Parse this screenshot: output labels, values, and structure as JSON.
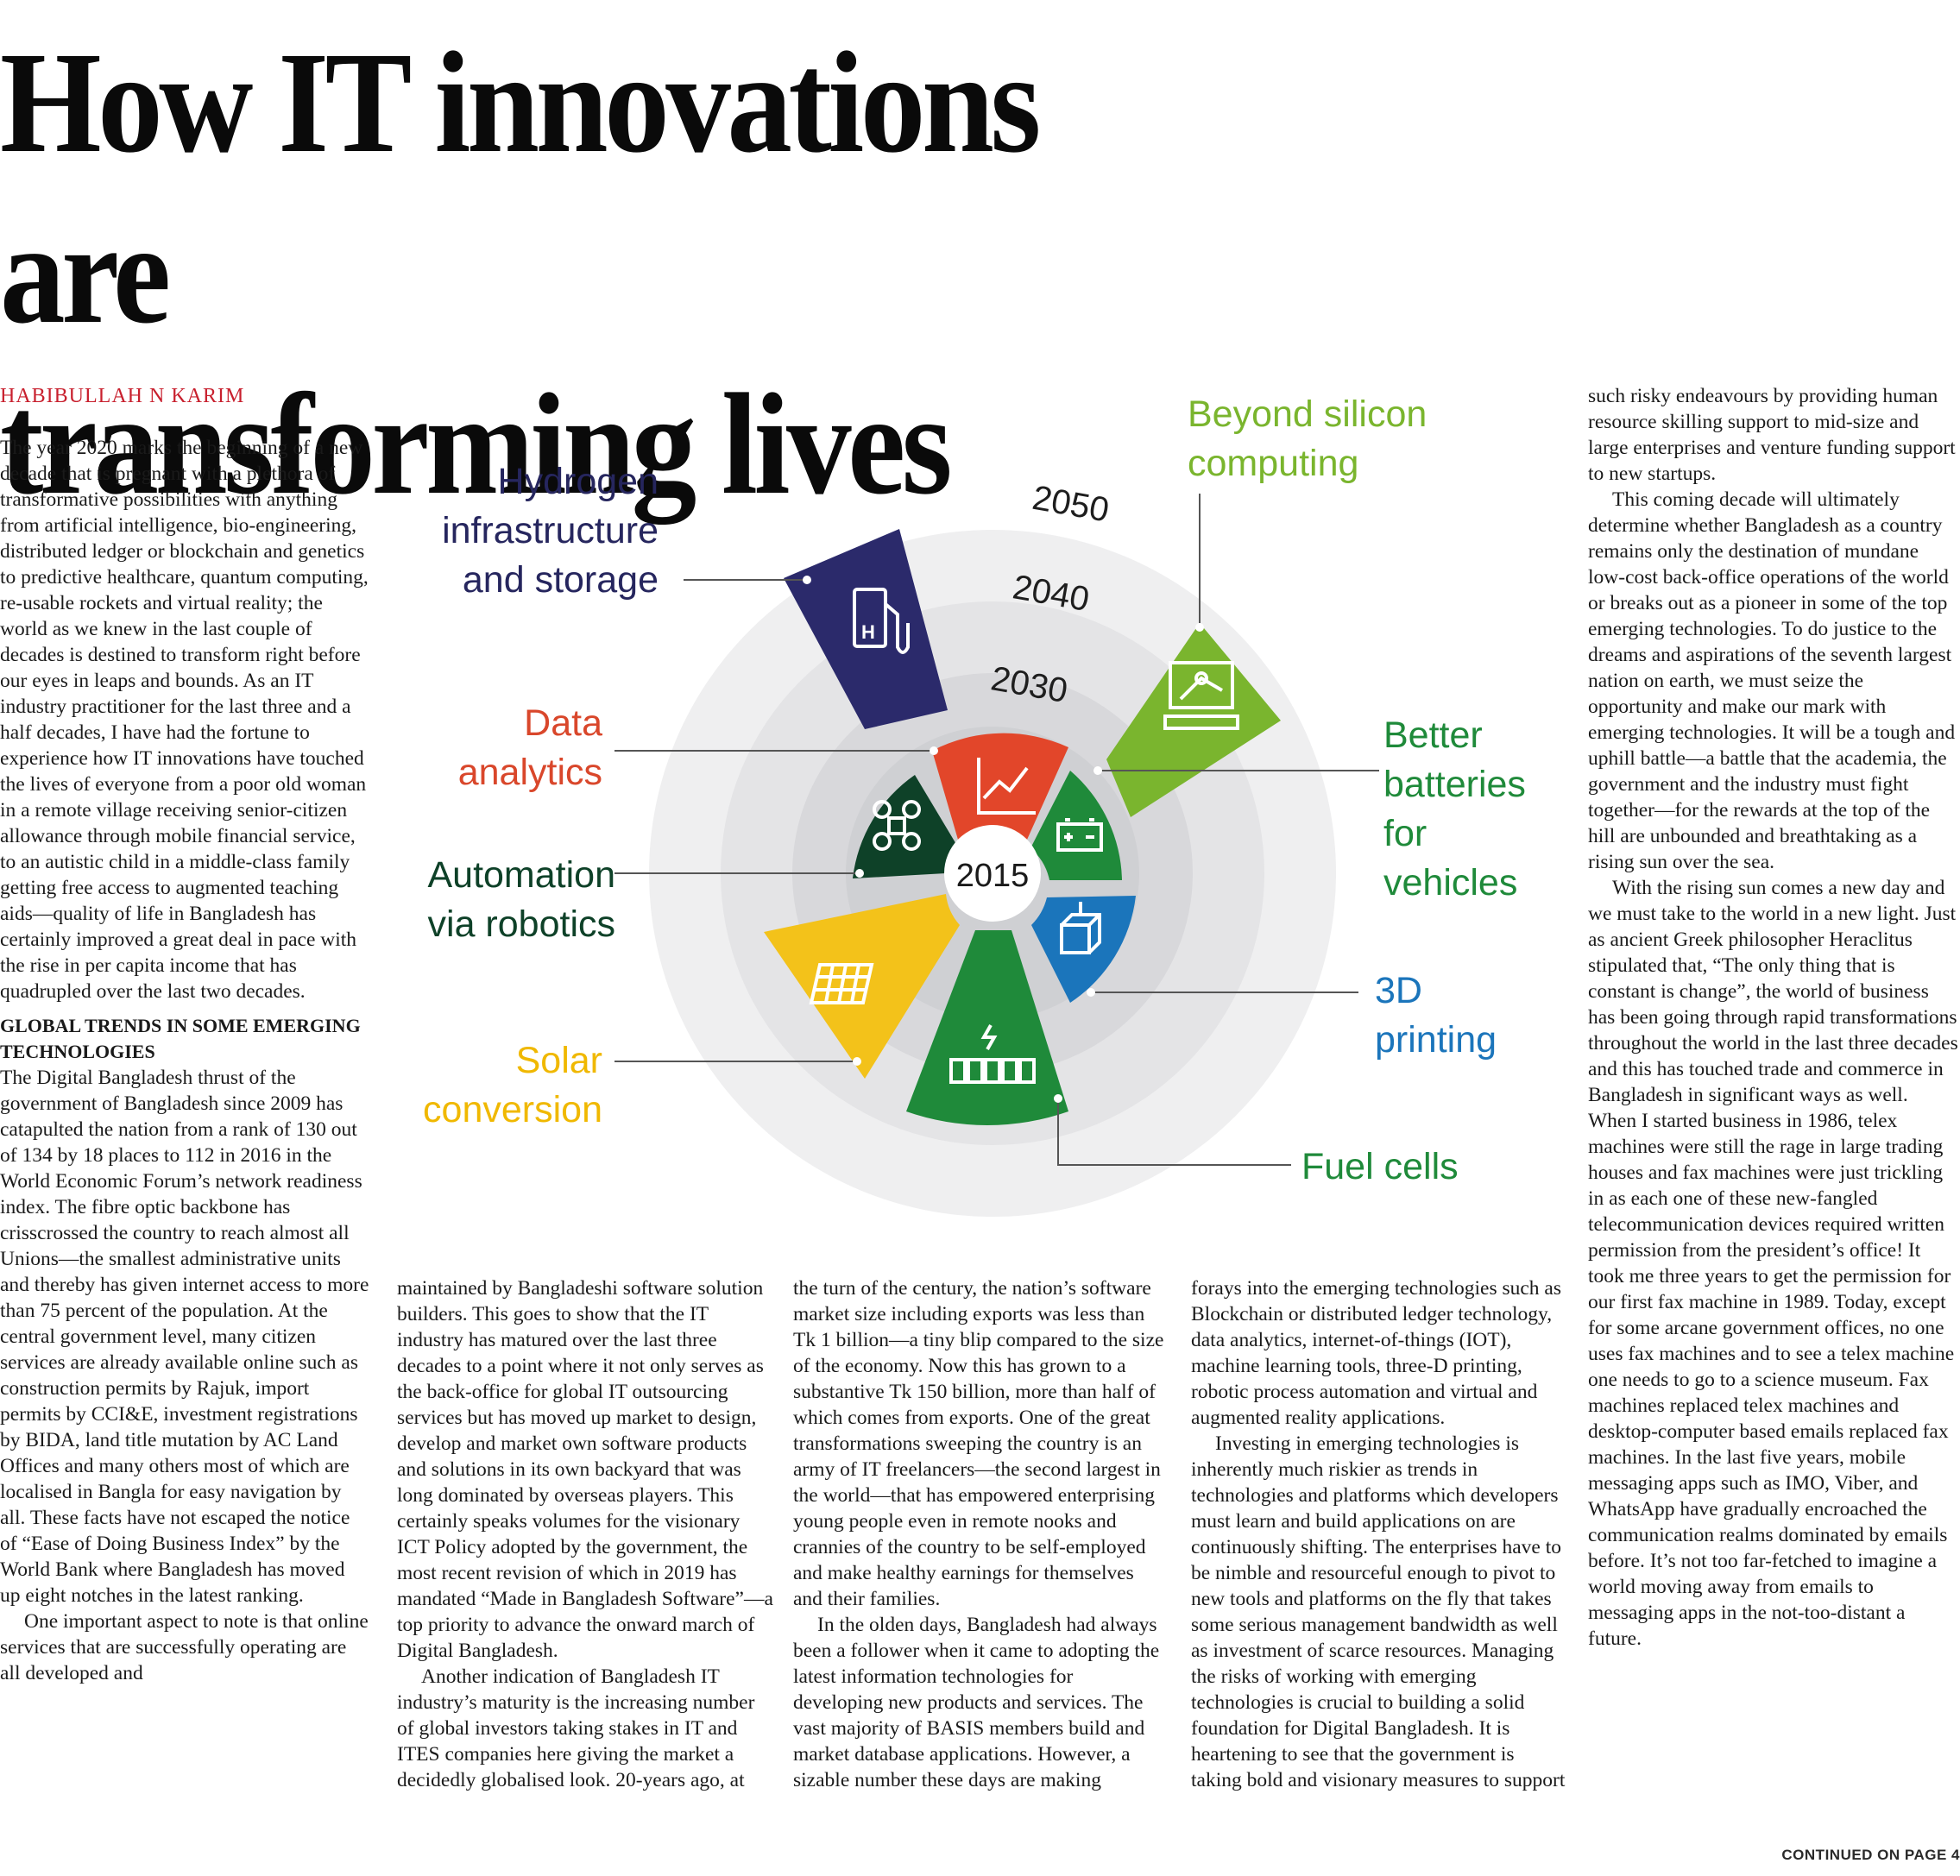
{
  "headline": {
    "line1": "How IT innovations are",
    "line2": "transforming lives"
  },
  "byline": "HABIBULLAH N KARIM",
  "continued": "CONTINUED ON PAGE 4",
  "infographic": {
    "center_year": "2015",
    "ring_years": [
      "2030",
      "2040",
      "2050"
    ],
    "colors": {
      "navy": "#2b2a6b",
      "red": "#e2462a",
      "green": "#1f8a3a",
      "lime": "#7ab52e",
      "blue": "#1b75bb",
      "yellow": "#f3c21a",
      "darkgreen": "#0e4128"
    },
    "labels": {
      "hydrogen": [
        "Hydrogen",
        "infrastructure",
        "and storage"
      ],
      "beyond": [
        "Beyond silicon",
        "computing"
      ],
      "data": [
        "Data",
        "analytics"
      ],
      "batteries": [
        "Better",
        "batteries",
        "for",
        "vehicles"
      ],
      "automation": [
        "Automation",
        "via robotics"
      ],
      "printing": [
        "3D",
        "printing"
      ],
      "solar": [
        "Solar",
        "conversion"
      ],
      "fuel": [
        "Fuel cells"
      ]
    },
    "icons": {
      "hydrogen": "hydrogen-pump-icon",
      "beyond": "computer-network-icon",
      "data": "growth-chart-icon",
      "batteries": "battery-icon",
      "automation": "drone-icon",
      "printing": "3d-cube-icon",
      "solar": "solar-panel-icon",
      "fuel": "fuel-cell-icon"
    },
    "h2_text": "H"
  },
  "columns": {
    "col1": {
      "p1": "The year 2020 marks the beginning of a new decade that is pregnant with a plethora of transformative possibilities with anything from artificial intelligence, bio-engineering, distributed ledger or blockchain and genetics to predictive healthcare, quantum computing, re-usable rockets and virtual reality; the world as we knew in the last couple of decades is destined to transform right before our eyes in leaps and bounds. As an IT industry practitioner for the last three and a half decades, I have had the fortune to experience how IT innovations have touched the lives of everyone from a poor old woman in a remote village receiving senior-citizen allowance through mobile financial service, to an autistic child in a middle-class family getting free access to augmented teaching aids—quality of life in Bangladesh has certainly improved a great deal in pace with the rise in per capita income that has quadrupled over the last two decades.",
      "subhead": "GLOBAL TRENDS IN SOME EMERGING TECHNOLOGIES",
      "p2": "The Digital Bangladesh thrust of the government of Bangladesh since 2009 has catapulted the nation from a rank of 130 out of 134 by 18 places to 112 in 2016 in the World Economic Forum’s network readiness index. The fibre optic backbone has crisscrossed the country to reach almost all Unions—the smallest administrative units and thereby has given internet access to more than 75 percent of the population. At the central government level, many citizen services are already available online such as construction permits by Rajuk, import permits by CCI&E, investment registrations by BIDA, land title mutation by AC Land Offices and many others most of which are localised in Bangla for easy navigation by all. These facts have not escaped the notice of “Ease of Doing Business Index” by the World Bank where Bangladesh has moved up eight notches in the latest ranking.",
      "p3": "One important aspect to note is that online services that are successfully operating are all developed and"
    },
    "col2": {
      "p1": "maintained by Bangladeshi software solution builders. This goes to show that the IT industry has matured over the last three decades to a point where it not only serves as the back-office for global IT outsourcing services but has moved up market to design, develop and market own software products and solutions in its own backyard that was long dominated by overseas players. This certainly speaks volumes for the visionary ICT Policy adopted by the government, the most recent revision of which in 2019 has mandated “Made in Bangladesh Software”—a top priority to advance the onward march of Digital Bangladesh.",
      "p2": "Another indication of Bangladesh IT industry’s maturity is the increasing number of global investors taking stakes in IT and ITES companies here giving the market a decidedly globalised look. 20-years ago, at"
    },
    "col3": {
      "p1": "the turn of the century, the nation’s software market size including exports was less than Tk 1 billion—a tiny blip compared to the size of the economy. Now this has grown to a substantive Tk 150 billion, more than half of which comes from exports. One of the great transformations sweeping the country is an army of IT freelancers—the second largest in the world—that has empowered enterprising young people even in remote nooks and crannies of the country to be self-employed and make healthy earnings for themselves and their families.",
      "p2": "In the olden days, Bangladesh had always been a follower when it came to adopting the latest information technologies for developing new products and services. The vast majority of BASIS members build and market database applications. However, a sizable number these days are making"
    },
    "col4": {
      "p1": "forays into the emerging technologies such as Blockchain or distributed ledger technology, data analytics, internet-of-things (IOT), machine learning tools, three-D printing, robotic process automation and virtual and augmented reality applications.",
      "p2": "Investing in emerging technologies is inherently much riskier as trends in technologies and platforms which developers must learn and build applications on are continuously shifting. The enterprises have to be nimble and resourceful enough to pivot to new tools and platforms on the fly that takes some serious management bandwidth as well as investment of scarce resources. Managing the risks of working with emerging technologies is crucial to building a solid foundation for Digital Bangladesh. It is heartening to see that the government is taking bold and visionary measures to support"
    },
    "col5": {
      "p1": "such risky endeavours by providing human resource skilling support to mid-size and large enterprises and venture funding support to new startups.",
      "p2": "This coming decade will ultimately determine whether Bangladesh as a country remains only the destination of mundane low-cost back-office operations of the world or breaks out as a pioneer in some of the top emerging technologies. To do justice to the dreams and aspirations of the seventh largest nation on earth, we must seize the opportunity and make our mark with emerging technologies. It will be a tough and uphill battle—a battle that the academia, the government and the industry must fight together—for the rewards at the top of the hill are unbounded and breathtaking as a rising sun over the sea.",
      "p3": "With the rising sun comes a new day and we must take to the world in a new light. Just as ancient Greek philosopher Heraclitus stipulated that, “The only thing that is constant is change”, the world of business has been going through rapid transformations throughout the world in the last three decades and this has touched trade and commerce in Bangladesh in significant ways as well. When I started business in 1986, telex machines were still the rage in large trading houses and fax machines were just trickling in as each one of these new-fangled telecommunication devices required written permission from the president’s office! It took me three years to get the permission for our first fax machine in 1989. Today, except for some arcane government offices, no one uses fax machines and to see a telex machine one needs to go to a science museum. Fax machines replaced telex machines and desktop-computer based emails replaced fax machines. In the last five years, mobile messaging apps such as IMO, Viber, and WhatsApp have gradually encroached the communication realms dominated by emails before. It’s not too far-fetched to imagine a world moving away from emails to messaging apps in the not-too-distant a future."
    }
  }
}
